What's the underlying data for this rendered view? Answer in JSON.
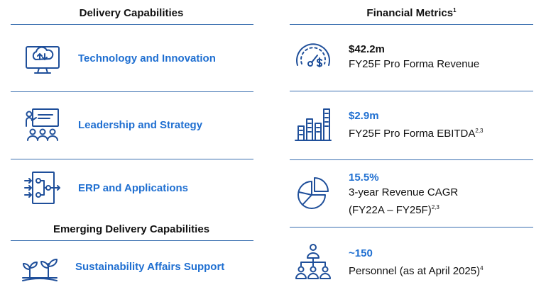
{
  "left": {
    "title": "Delivery Capabilities",
    "items": [
      {
        "label": "Technology and Innovation",
        "icon": "cloud-monitor-icon"
      },
      {
        "label": "Leadership and Strategy",
        "icon": "presentation-team-icon"
      },
      {
        "label": "ERP and Applications",
        "icon": "network-flow-icon"
      }
    ],
    "emerging_title": "Emerging Delivery Capabilities",
    "emerging_items": [
      {
        "label": "Sustainability Affairs Support",
        "icon": "seedling-icon"
      }
    ]
  },
  "right": {
    "title": "Financial Metrics",
    "title_sup": "1",
    "metrics": [
      {
        "value": "$42.2m",
        "desc": "FY25F Pro Forma Revenue",
        "desc_sup": "",
        "icon": "gauge-dollar-icon"
      },
      {
        "value": "$2.9m",
        "desc": "FY25F Pro Forma EBITDA",
        "desc_sup": "2,3",
        "icon": "bar-buildings-icon"
      },
      {
        "value": "15.5%",
        "desc": "3-year Revenue CAGR",
        "desc2": "(FY22A – FY25F)",
        "desc2_sup": "2,3",
        "icon": "pie-chart-icon"
      },
      {
        "value": "~150",
        "desc": "Personnel (as at April 2025)",
        "desc_sup": "4",
        "icon": "org-chart-people-icon"
      }
    ]
  },
  "colors": {
    "accent": "#1f6fd1",
    "rule": "#3a6fb0",
    "icon": "#1f4f9a"
  }
}
